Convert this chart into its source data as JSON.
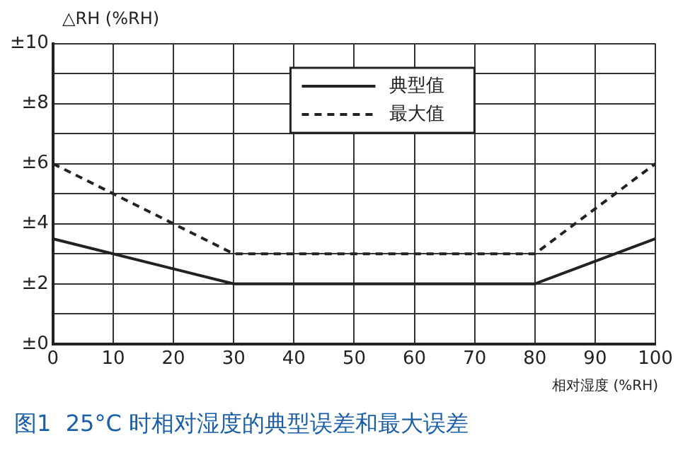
{
  "chart_data": {
    "type": "line",
    "title": "图1  25°C 时相对湿度的典型误差和最大误差",
    "ylabel": "△RH (%RH)",
    "xlabel": "相对湿度 (%RH)",
    "x": [
      0,
      30,
      80,
      100
    ],
    "series": [
      {
        "name": "典型值",
        "color": "#222222",
        "values": [
          3.5,
          2,
          2,
          3.5
        ],
        "line_style": "solid"
      },
      {
        "name": "最大值",
        "color": "#222222",
        "values": [
          6,
          3,
          3,
          6
        ],
        "line_style": "dashed"
      }
    ],
    "xlim": [
      0,
      100
    ],
    "xticks": [
      0,
      10,
      20,
      30,
      40,
      50,
      60,
      70,
      80,
      90,
      100
    ],
    "ylim": [
      0,
      10
    ],
    "yticks": [
      {
        "value": 0,
        "label": "±0"
      },
      {
        "value": 1,
        "label": null
      },
      {
        "value": 2,
        "label": "±2"
      },
      {
        "value": 3,
        "label": null
      },
      {
        "value": 4,
        "label": "±4"
      },
      {
        "value": 5,
        "label": null
      },
      {
        "value": 6,
        "label": "±6"
      },
      {
        "value": 7,
        "label": null
      },
      {
        "value": 8,
        "label": "±8"
      },
      {
        "value": 9,
        "label": null
      },
      {
        "value": 10,
        "label": "±10"
      }
    ],
    "grid": true,
    "legend": "top",
    "marker": "none"
  }
}
